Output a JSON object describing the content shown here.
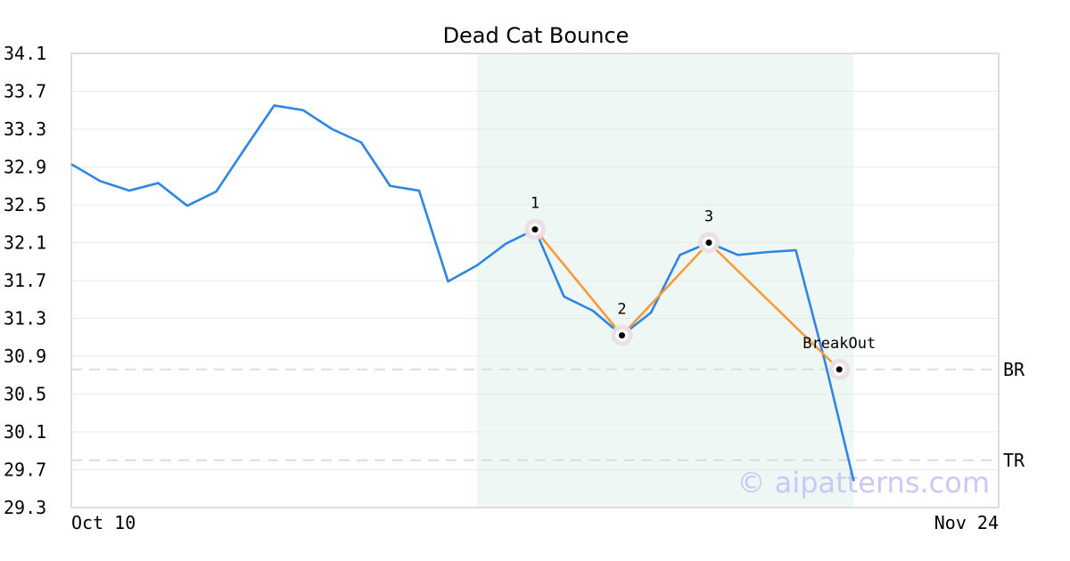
{
  "chart_data": {
    "type": "line",
    "title": "Dead Cat Bounce",
    "watermark": "© aipatterns.com",
    "xlabel": "",
    "ylabel": "",
    "ylim": [
      29.3,
      34.1
    ],
    "y_ticks": [
      "34.1",
      "33.7",
      "33.3",
      "32.9",
      "32.5",
      "32.1",
      "31.7",
      "31.3",
      "30.9",
      "30.5",
      "30.1",
      "29.7",
      "29.3"
    ],
    "x_ticks": [
      {
        "label": "Oct 10",
        "index": 0
      },
      {
        "label": "Nov 24",
        "index": 32
      }
    ],
    "grid": true,
    "series": [
      {
        "color": "#2f86e0",
        "values": [
          32.93,
          32.75,
          32.65,
          32.73,
          32.49,
          32.64,
          33.1,
          33.55,
          33.5,
          33.3,
          33.16,
          32.7,
          32.65,
          31.69,
          31.86,
          32.09,
          32.24,
          31.53,
          31.38,
          31.12,
          31.36,
          31.97,
          32.1,
          31.97,
          32.0,
          32.02,
          30.85,
          29.58
        ]
      }
    ],
    "highlight_region": {
      "from_index": 14,
      "to_index": 27,
      "color": "#eef7f4"
    },
    "pattern": {
      "color": "#f59b3c",
      "points": [
        {
          "label": "1",
          "index": 16,
          "value": 32.24
        },
        {
          "label": "2",
          "index": 19,
          "value": 31.12
        },
        {
          "label": "3",
          "index": 22,
          "value": 32.1
        },
        {
          "label": "BreakOut",
          "index": 26.5,
          "value": 30.76
        }
      ]
    },
    "levels": [
      {
        "label": "BR",
        "value": 30.76
      },
      {
        "label": "TR",
        "value": 29.8
      }
    ]
  }
}
